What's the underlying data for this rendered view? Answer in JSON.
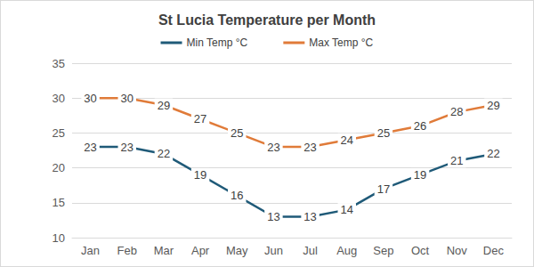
{
  "chart_data": {
    "type": "line",
    "title": "St Lucia Temperature per Month",
    "categories": [
      "Jan",
      "Feb",
      "Mar",
      "Apr",
      "May",
      "Jun",
      "Jul",
      "Aug",
      "Sep",
      "Oct",
      "Nov",
      "Dec"
    ],
    "series": [
      {
        "name": "Min Temp °C",
        "color": "#1f5a78",
        "values": [
          23,
          23,
          22,
          19,
          16,
          13,
          13,
          14,
          17,
          19,
          21,
          22
        ]
      },
      {
        "name": "Max Temp °C",
        "color": "#e07b39",
        "values": [
          30,
          30,
          29,
          27,
          25,
          23,
          23,
          24,
          25,
          26,
          28,
          29
        ]
      }
    ],
    "ylim": [
      10,
      35
    ],
    "yticks": [
      10,
      15,
      20,
      25,
      30,
      35
    ],
    "grid": true,
    "legend": "top",
    "data_labels": true,
    "marker": "none",
    "line_style": "solid"
  }
}
